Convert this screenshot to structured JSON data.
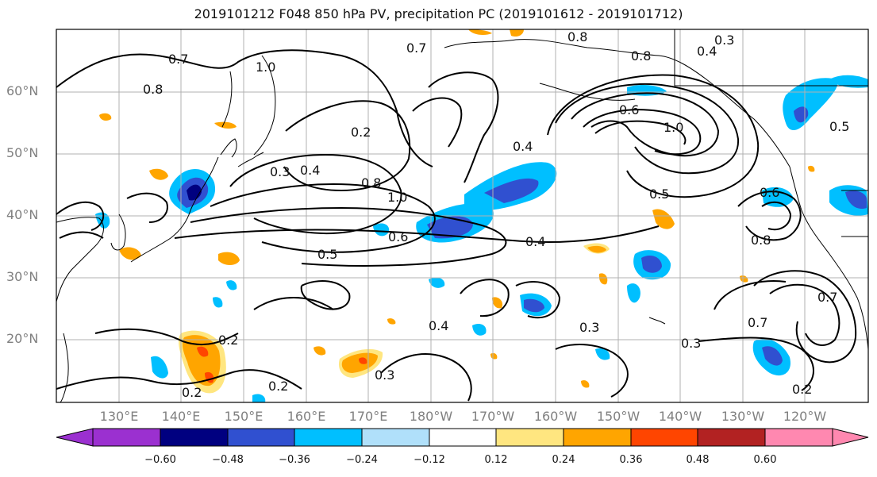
{
  "title": "2019101212 F048 850 hPa PV, precipitation PC (2019101612 - 2019101712)",
  "lat_labels": [
    "60°N",
    "50°N",
    "40°N",
    "30°N",
    "20°N"
  ],
  "lon_labels": [
    "130°E",
    "140°E",
    "150°E",
    "160°E",
    "170°E",
    "180°W",
    "170°W",
    "160°W",
    "150°W",
    "140°W",
    "130°W",
    "120°W"
  ],
  "contour_labels": [
    "0.7",
    "1.0",
    "0.7",
    "0.8",
    "0.8",
    "0.3",
    "0.4",
    "0.2",
    "0.6",
    "1.0",
    "0.5",
    "0.3",
    "0.4",
    "0.8",
    "1.0",
    "0.6",
    "0.4",
    "0.5",
    "0.4",
    "0.8",
    "0.6",
    "0.5",
    "0.2",
    "0.2",
    "0.3",
    "0.2",
    "0.4",
    "0.3",
    "0.7",
    "0.3",
    "0.2",
    "0.7",
    "0.8"
  ],
  "colorbar": {
    "ticks": [
      "−0.60",
      "−0.48",
      "−0.36",
      "−0.24",
      "−0.12",
      "0.12",
      "0.24",
      "0.36",
      "0.48",
      "0.60"
    ],
    "colors": [
      "#9b30d0",
      "#000080",
      "#3050d0",
      "#00bfff",
      "#b0e0fa",
      "#ffffff",
      "#ffe680",
      "#ffa500",
      "#ff4500",
      "#b22222",
      "#ff88b0"
    ]
  },
  "shading_colors": {
    "orange": "#ffa500",
    "light_yellow": "#ffe680",
    "red_orange": "#ff4500",
    "sky_blue": "#00bfff",
    "royal_blue": "#3050d0",
    "navy": "#000080"
  }
}
